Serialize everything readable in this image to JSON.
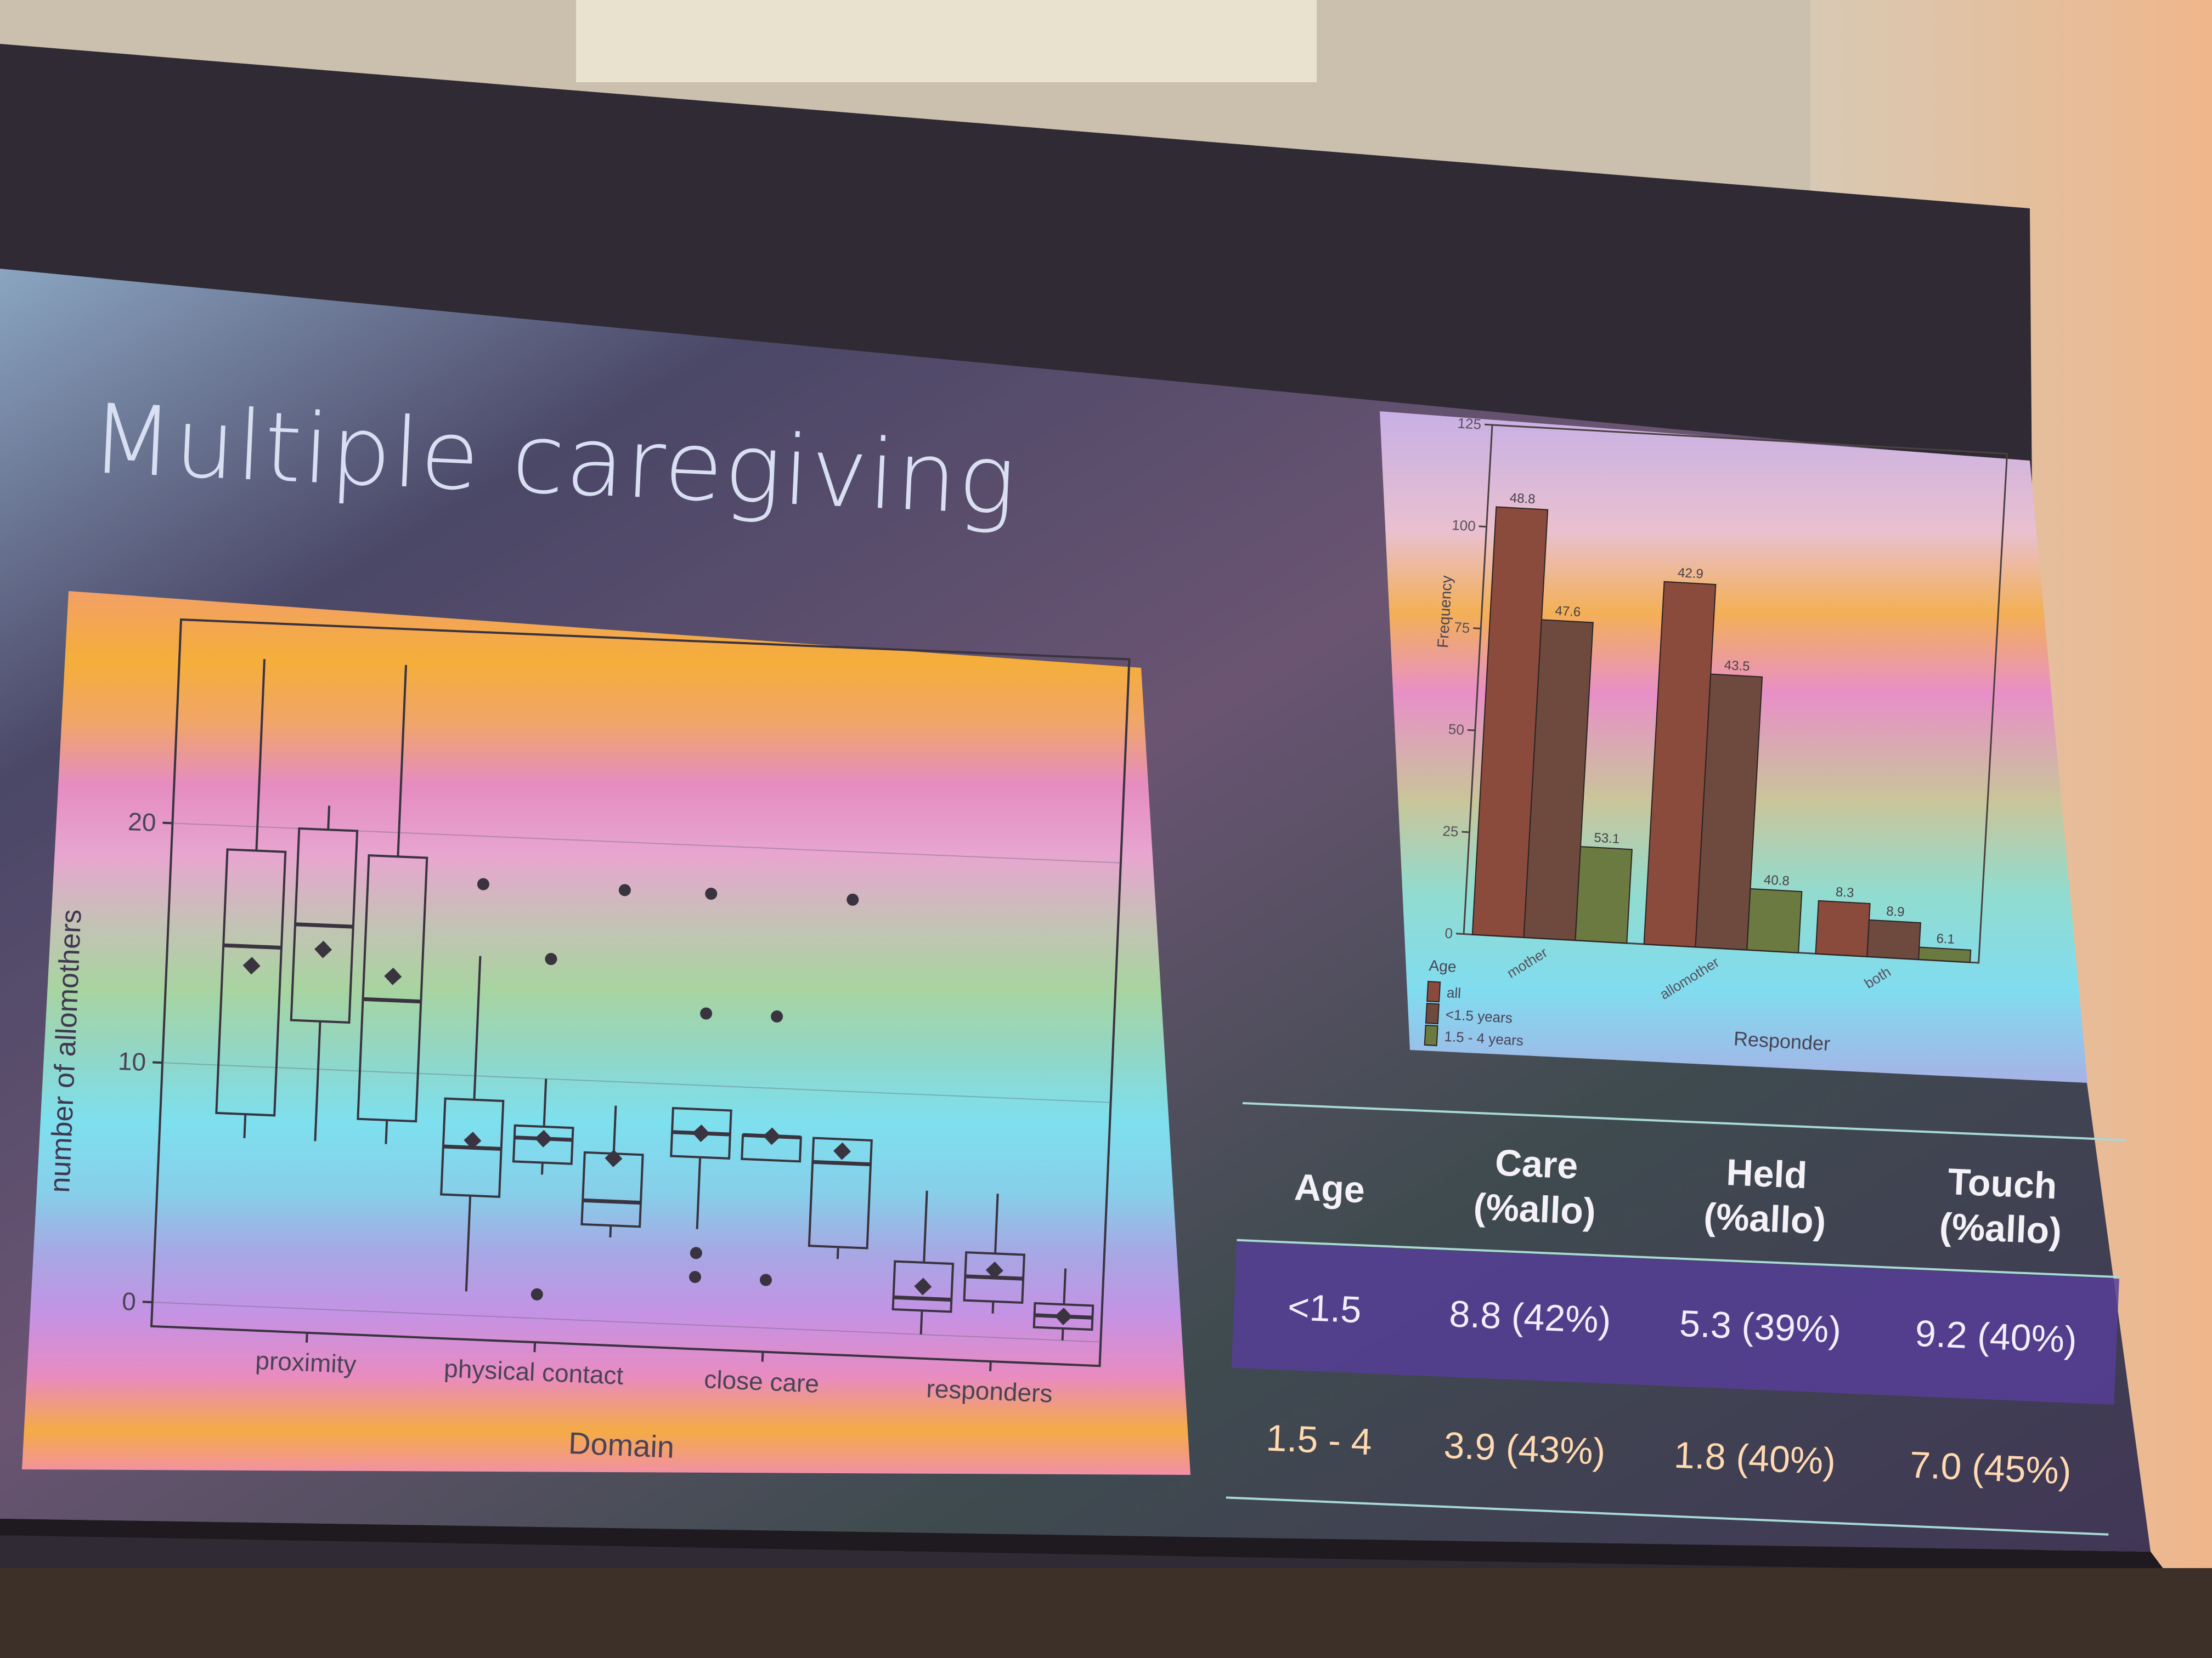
{
  "slide": {
    "title": "Multiple caregiving"
  },
  "chart_data": [
    {
      "type": "boxplot",
      "xlabel": "Domain",
      "ylabel": "number of allomothers",
      "categories": [
        "proximity",
        "physical contact",
        "close care",
        "responders"
      ],
      "yticks": [
        0,
        10,
        20
      ],
      "ylim": [
        -1,
        28.5
      ],
      "groups_per_category": 3,
      "boxes": [
        {
          "category": "proximity",
          "min": 7,
          "q1": 8,
          "median": 15,
          "q3": 19,
          "max": 27,
          "mean": 14.2,
          "outliers": []
        },
        {
          "category": "proximity",
          "min": 7,
          "q1": 12,
          "median": 16,
          "q3": 20,
          "max": 21,
          "mean": 15,
          "outliers": []
        },
        {
          "category": "proximity",
          "min": 7,
          "q1": 8,
          "median": 13,
          "q3": 19,
          "max": 27,
          "mean": 14,
          "outliers": []
        },
        {
          "category": "physical contact",
          "min": 1,
          "q1": 5,
          "median": 7,
          "q3": 9,
          "max": 15,
          "mean": 7.3,
          "outliers": [
            18
          ]
        },
        {
          "category": "physical contact",
          "min": 6,
          "q1": 6.5,
          "median": 7.5,
          "q3": 8,
          "max": 10,
          "mean": 7.5,
          "outliers": [
            15,
            1
          ]
        },
        {
          "category": "physical contact",
          "min": 3.5,
          "q1": 4,
          "median": 5,
          "q3": 7,
          "max": 9,
          "mean": 6.8,
          "outliers": [
            18
          ]
        },
        {
          "category": "close care",
          "min": 4,
          "q1": 7,
          "median": 8,
          "q3": 9,
          "max": 9,
          "mean": 8,
          "outliers": [
            18,
            13,
            3,
            2
          ]
        },
        {
          "category": "close care",
          "min": 7,
          "q1": 7,
          "median": 8,
          "q3": 8,
          "max": 8,
          "mean": 8,
          "outliers": [
            13,
            2
          ]
        },
        {
          "category": "close care",
          "min": 3,
          "q1": 3.5,
          "median": 7,
          "q3": 8,
          "max": 8,
          "mean": 7.5,
          "outliers": [
            18
          ]
        },
        {
          "category": "responders",
          "min": 0,
          "q1": 1,
          "median": 1.5,
          "q3": 3,
          "max": 6,
          "mean": 2,
          "outliers": []
        },
        {
          "category": "responders",
          "min": 1,
          "q1": 1.5,
          "median": 2.5,
          "q3": 3.5,
          "max": 6,
          "mean": 2.8,
          "outliers": []
        },
        {
          "category": "responders",
          "min": 0,
          "q1": 0.5,
          "median": 1,
          "q3": 1.5,
          "max": 3,
          "mean": 1,
          "outliers": []
        }
      ]
    },
    {
      "type": "bar",
      "xlabel": "Responder",
      "ylabel": "Frequency",
      "categories": [
        "mother",
        "allomother",
        "both"
      ],
      "yticks": [
        0,
        25,
        50,
        75,
        100,
        125
      ],
      "ylim": [
        0,
        125
      ],
      "legend": {
        "title": "Age",
        "position": "bottom-left"
      },
      "series": [
        {
          "name": "all",
          "color": "#8a4a3c",
          "values": [
            105,
            89,
            13
          ],
          "labels": [
            "48.8",
            "42.9",
            "8.3"
          ]
        },
        {
          "name": "<1.5 years",
          "color": "#6e4a3e",
          "values": [
            78,
            67,
            9
          ],
          "labels": [
            "47.6",
            "43.5",
            "8.9"
          ]
        },
        {
          "name": "1.5 - 4 years",
          "color": "#6a7a40",
          "values": [
            23,
            15,
            3
          ],
          "labels": [
            "53.1",
            "40.8",
            "6.1"
          ]
        }
      ]
    }
  ],
  "summary_table": {
    "headers": [
      [
        "Age"
      ],
      [
        "Care",
        "(%allo)"
      ],
      [
        "Held",
        "(%allo)"
      ],
      [
        "Touch",
        "(%allo)"
      ]
    ],
    "rows": [
      [
        "<1.5",
        "8.8 (42%)",
        "5.3 (39%)",
        "9.2 (40%)"
      ],
      [
        "1.5 - 4",
        "3.9 (43%)",
        "1.8 (40%)",
        "7.0 (45%)"
      ]
    ]
  },
  "colors": {
    "highlight_row": "#5a3e96",
    "table_rule": "#a8d9d6",
    "title_text": "#d9dff2"
  }
}
